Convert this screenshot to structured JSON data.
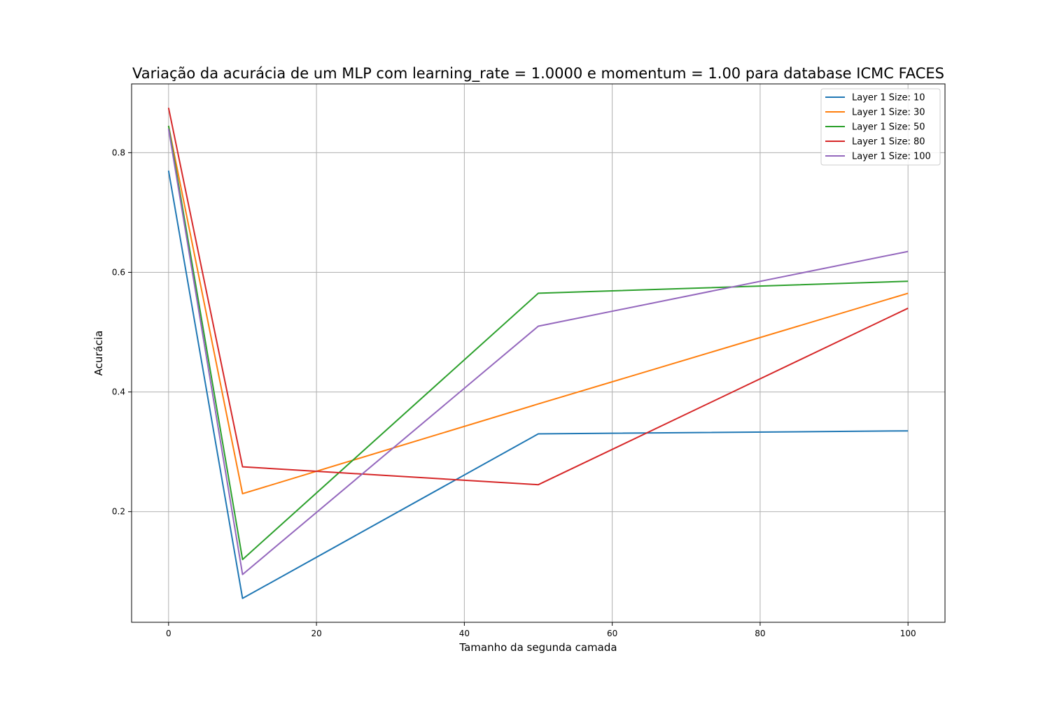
{
  "chart_data": {
    "type": "line",
    "title": "Variação da acurácia de um MLP com learning_rate = 1.0000 e momentum = 1.00 para database ICMC FACES",
    "xlabel": "Tamanho da segunda camada",
    "ylabel": "Acurácia",
    "xlim": [
      -5,
      105
    ],
    "ylim": [
      0.015,
      0.915
    ],
    "x_ticks": [
      0,
      20,
      40,
      60,
      80,
      100
    ],
    "y_ticks": [
      0.2,
      0.4,
      0.6,
      0.8
    ],
    "x_tick_labels": [
      "0",
      "20",
      "40",
      "60",
      "80",
      "100"
    ],
    "y_tick_labels": [
      "0.2",
      "0.4",
      "0.6",
      "0.8"
    ],
    "grid": true,
    "legend_position": "top-right",
    "x": [
      0,
      10,
      50,
      100
    ],
    "series": [
      {
        "name": "Layer 1 Size: 10",
        "color": "#1f77b4",
        "values": [
          0.77,
          0.055,
          0.33,
          0.335
        ]
      },
      {
        "name": "Layer 1 Size: 30",
        "color": "#ff7f0e",
        "values": [
          0.845,
          0.23,
          0.38,
          0.565
        ]
      },
      {
        "name": "Layer 1 Size: 50",
        "color": "#2ca02c",
        "values": [
          0.845,
          0.12,
          0.565,
          0.585
        ]
      },
      {
        "name": "Layer 1 Size: 80",
        "color": "#d62728",
        "values": [
          0.875,
          0.275,
          0.245,
          0.54
        ]
      },
      {
        "name": "Layer 1 Size: 100",
        "color": "#9467bd",
        "values": [
          0.84,
          0.095,
          0.51,
          0.635
        ]
      }
    ]
  }
}
